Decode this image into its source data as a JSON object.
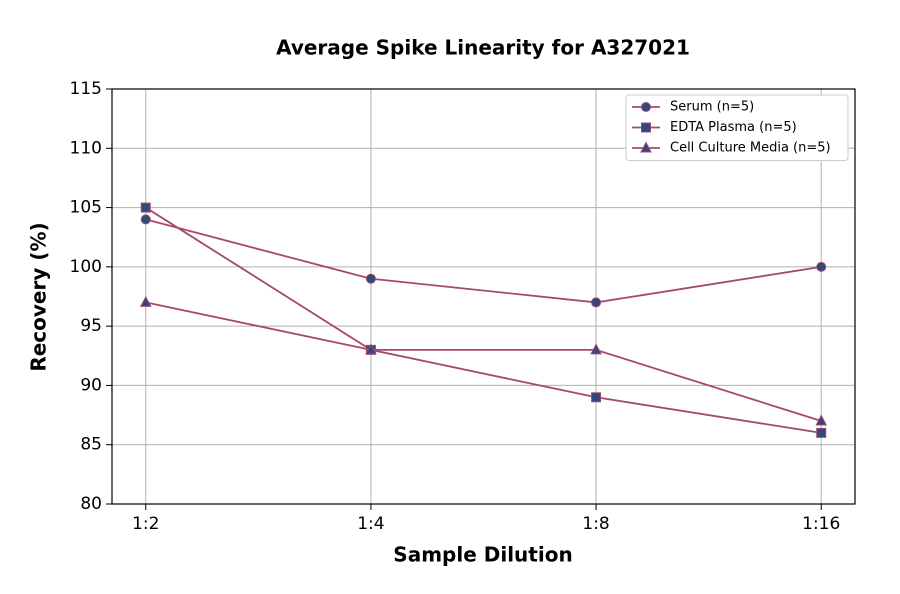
{
  "chart_data": {
    "type": "line",
    "title": "Average Spike Linearity for A327021",
    "x_label": "Sample Dilution",
    "y_label": "Recovery (%)",
    "categories": [
      "1:2",
      "1:4",
      "1:8",
      "1:16"
    ],
    "series": [
      {
        "name": "Serum (n=5)",
        "color": "#a8476e",
        "marker": "circle",
        "marker_color": "#2d4a7c",
        "values": [
          104,
          99,
          97,
          100
        ]
      },
      {
        "name": "EDTA Plasma (n=5)",
        "color": "#a8476e",
        "marker": "square",
        "marker_color": "#2d4a7c",
        "values": [
          105,
          93,
          89,
          86
        ]
      },
      {
        "name": "Cell Culture Media (n=5)",
        "color": "#a8476e",
        "marker": "triangle",
        "marker_color": "#2d4a7c",
        "values": [
          97,
          93,
          93,
          87
        ]
      }
    ],
    "ylim": [
      80,
      115
    ],
    "yticks": [
      80,
      85,
      90,
      95,
      100,
      105,
      110,
      115
    ],
    "grid": true,
    "legend": "upper right"
  }
}
